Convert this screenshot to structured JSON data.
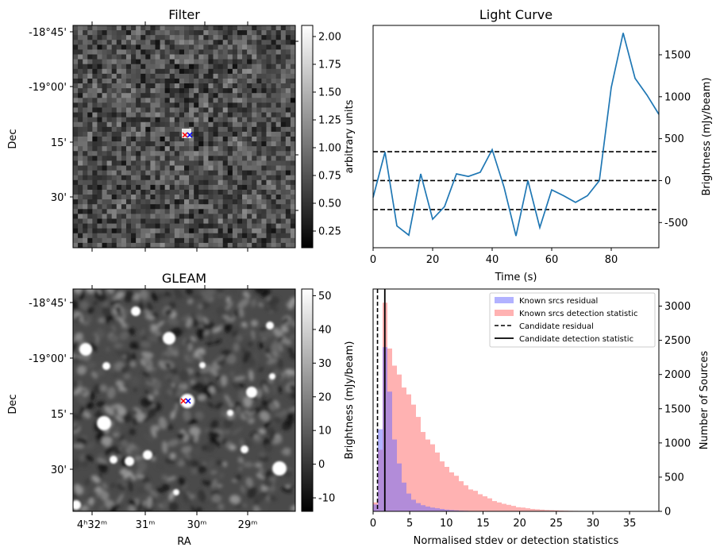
{
  "colors": {
    "line": "#1f77b4",
    "known_residual": "#6666ff",
    "known_detection": "#ff6666",
    "overlap": "#c060a8",
    "black": "#000000",
    "marker_red": "#ff0000",
    "marker_blue": "#0000ff"
  },
  "chart_data": [
    {
      "id": "filter",
      "type": "heatmap",
      "title": "Filter",
      "ylabel": "Dec",
      "yticks": [
        "-18°45'",
        "-19°00'",
        "15'",
        "30'"
      ],
      "colorbar": {
        "label": "arbitrary units",
        "ticks": [
          "2.00",
          "1.75",
          "1.50",
          "1.25",
          "1.00",
          "0.75",
          "0.50",
          "0.25"
        ],
        "min": 0.1,
        "max": 2.1,
        "tick_values": [
          2.0,
          1.75,
          1.5,
          1.25,
          1.0,
          0.75,
          0.5,
          0.25
        ]
      },
      "markers": [
        "x-red",
        "x-blue"
      ]
    },
    {
      "id": "light_curve",
      "type": "line",
      "title": "Light Curve",
      "xlabel": "Time (s)",
      "ylabel": "Brightness (mJy/beam)",
      "xlim": [
        0,
        96
      ],
      "ylim": [
        -800,
        1850
      ],
      "xticks": [
        "0",
        "20",
        "40",
        "60",
        "80"
      ],
      "xtick_values": [
        0,
        20,
        40,
        60,
        80
      ],
      "yticks": [
        "1500",
        "1000",
        "500",
        "0",
        "-500"
      ],
      "ytick_values": [
        1500,
        1000,
        500,
        0,
        -500
      ],
      "hlines": [
        345,
        0,
        -345
      ],
      "x": [
        0,
        4,
        8,
        12,
        16,
        20,
        24,
        28,
        32,
        36,
        40,
        44,
        48,
        52,
        56,
        60,
        64,
        68,
        72,
        76,
        80,
        84,
        88,
        92,
        96
      ],
      "y": [
        -200,
        340,
        -540,
        -650,
        80,
        -460,
        -310,
        80,
        50,
        100,
        370,
        -80,
        -660,
        0,
        -560,
        -110,
        -180,
        -260,
        -180,
        0,
        1110,
        1760,
        1220,
        1020,
        790
      ]
    },
    {
      "id": "gleam",
      "type": "heatmap",
      "title": "GLEAM",
      "xlabel": "RA",
      "ylabel": "Dec",
      "xticks": [
        "4ʰ32ᵐ",
        "31ᵐ",
        "30ᵐ",
        "29ᵐ"
      ],
      "yticks": [
        "-18°45'",
        "-19°00'",
        "15'",
        "30'"
      ],
      "colorbar": {
        "label": "Brightness (mJy/beam)",
        "ticks": [
          "50",
          "40",
          "30",
          "20",
          "10",
          "0",
          "-10"
        ],
        "min": -14,
        "max": 52,
        "tick_values": [
          50,
          40,
          30,
          20,
          10,
          0,
          -10
        ]
      },
      "markers": [
        "x-red",
        "x-blue"
      ]
    },
    {
      "id": "histogram",
      "type": "bar",
      "xlabel": "Normalised stdev or detection statistics",
      "ylabel": "Number of Sources",
      "xlim": [
        0,
        39
      ],
      "ylim": [
        0,
        3250
      ],
      "xticks": [
        "0",
        "5",
        "10",
        "15",
        "20",
        "25",
        "30",
        "35"
      ],
      "xtick_values": [
        0,
        5,
        10,
        15,
        20,
        25,
        30,
        35
      ],
      "yticks": [
        "3000",
        "2500",
        "2000",
        "1500",
        "1000",
        "500",
        "0"
      ],
      "ytick_values": [
        3000,
        2500,
        2000,
        1500,
        1000,
        500,
        0
      ],
      "bin_width": 0.65,
      "series": [
        {
          "name": "Known srcs residual",
          "values": [
            100,
            1200,
            2400,
            1750,
            1050,
            700,
            420,
            260,
            170,
            120,
            90,
            70,
            55,
            45,
            35,
            25,
            20,
            15,
            10,
            8,
            6,
            5,
            4,
            3,
            2,
            2,
            1
          ]
        },
        {
          "name": "Known srcs detection statistic",
          "values": [
            130,
            900,
            3050,
            2380,
            2130,
            2000,
            1810,
            1710,
            1560,
            1380,
            1160,
            1050,
            980,
            860,
            730,
            650,
            570,
            520,
            440,
            380,
            320,
            300,
            250,
            220,
            190,
            150,
            130,
            110,
            95,
            80,
            60,
            55,
            45,
            35,
            30,
            25,
            20,
            18,
            15,
            12,
            10,
            8,
            7,
            6,
            5,
            4,
            4,
            3,
            3,
            2,
            2,
            2,
            2,
            1,
            1,
            1,
            1,
            1,
            1,
            0,
            0,
            0
          ]
        }
      ],
      "candidate_residual": 0.6,
      "candidate_detection_statistic": 1.6,
      "legend": {
        "position": "top-right",
        "entries": [
          "Known srcs residual",
          "Known srcs detection statistic",
          "Candidate residual",
          "Candidate detection statistic"
        ]
      },
      "right_ylabel_note": "Brightness (mJy/beam)"
    }
  ]
}
